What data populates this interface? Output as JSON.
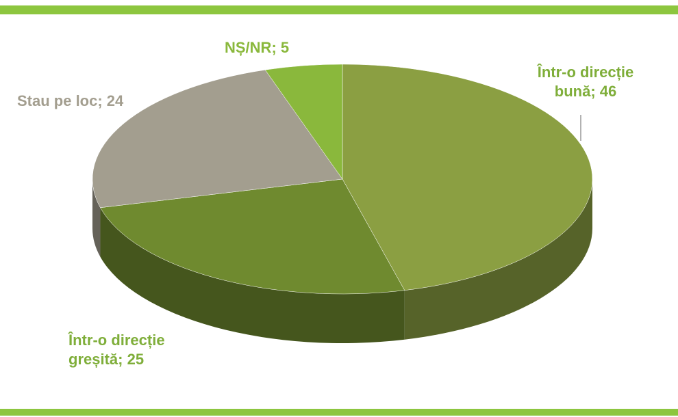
{
  "chart_data": {
    "type": "pie",
    "values": [
      46,
      25,
      24,
      5
    ],
    "value_labels": [
      "Într-o direcție bună; 46",
      "Într-o direcție greșită; 25",
      "Stau pe loc; 24",
      "NȘ/NR; 5"
    ],
    "colors": [
      "#8b9f42",
      "#6f8a2f",
      "#a39e8f",
      "#8ab83c"
    ],
    "label_colors": [
      "#7fae3a",
      "#7fae3a",
      "#a39e8f",
      "#8ab83c"
    ]
  }
}
